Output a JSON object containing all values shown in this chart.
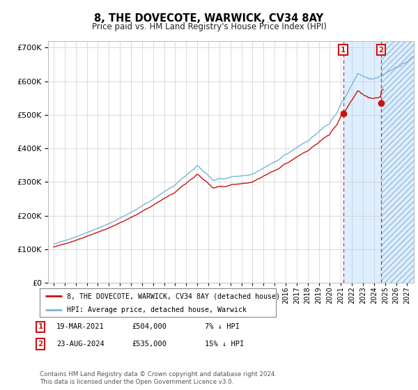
{
  "title": "8, THE DOVECOTE, WARWICK, CV34 8AY",
  "subtitle": "Price paid vs. HM Land Registry's House Price Index (HPI)",
  "legend_entry1": "8, THE DOVECOTE, WARWICK, CV34 8AY (detached house)",
  "legend_entry2": "HPI: Average price, detached house, Warwick",
  "transaction1_date": "19-MAR-2021",
  "transaction1_price": 504000,
  "transaction1_info": "7% ↓ HPI",
  "transaction2_date": "23-AUG-2024",
  "transaction2_price": 535000,
  "transaction2_info": "15% ↓ HPI",
  "footer_line1": "Contains HM Land Registry data © Crown copyright and database right 2024.",
  "footer_line2": "This data is licensed under the Open Government Licence v3.0.",
  "hpi_color": "#7ab4d6",
  "price_color": "#cc1111",
  "shade_color": "#ddeeff",
  "hatch_color": "#99bbdd",
  "grid_color": "#cccccc",
  "t1_year": 2021.21,
  "t2_year": 2024.64,
  "year_start": 1995,
  "year_end": 2027
}
